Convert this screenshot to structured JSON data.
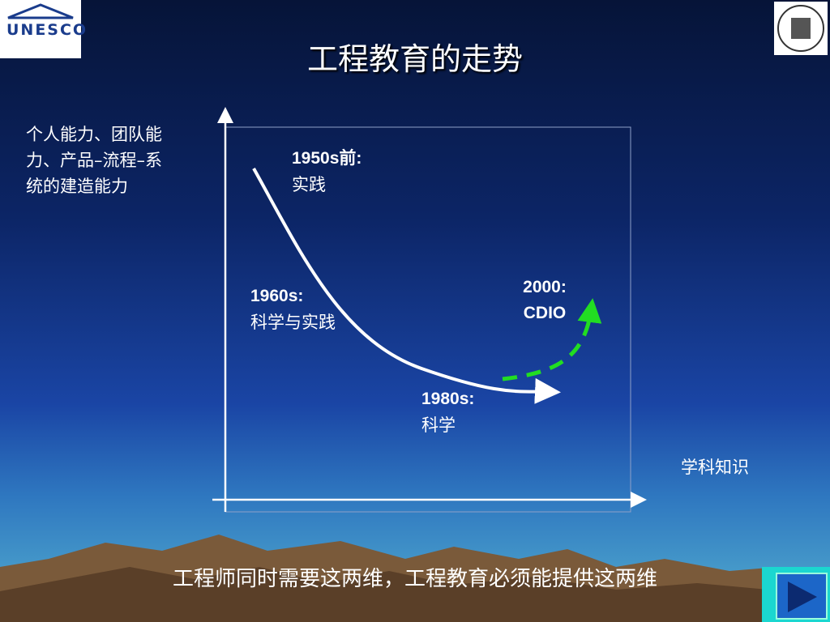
{
  "header": {
    "title": "工程教育的走势",
    "left_logo": "UNESCO"
  },
  "diagram": {
    "y_axis_label": {
      "lines": [
        "个人能力、团队能",
        "力、产品–流程–系",
        "统的建造能力"
      ]
    },
    "x_axis_label": "学科知识",
    "stages": [
      {
        "label": "1950s前:",
        "text": "实践"
      },
      {
        "label": "1960s:",
        "text": "科学与实践"
      },
      {
        "label": "1980s:",
        "text": "科学"
      },
      {
        "label": "2000:",
        "text": "CDIO"
      }
    ]
  },
  "footer": {
    "text": "工程师同时需要这两维，工程教育必须能提供这两维"
  }
}
